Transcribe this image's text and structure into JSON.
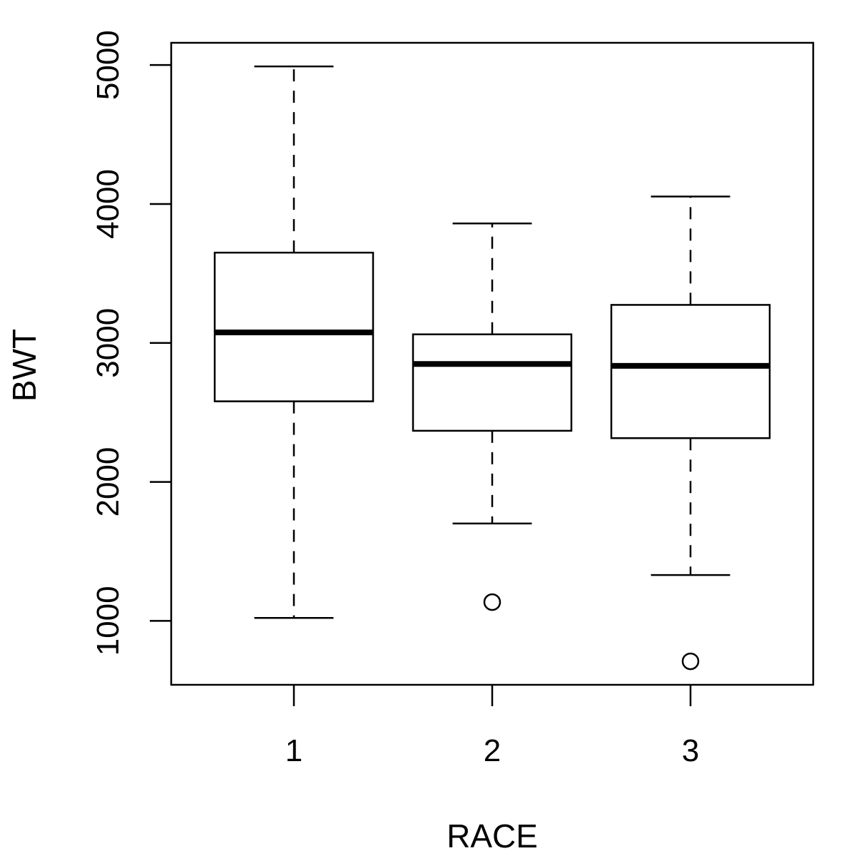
{
  "chart_data": {
    "type": "boxplot",
    "title": "",
    "xlabel": "RACE",
    "ylabel": "BWT",
    "categories": [
      "1",
      "2",
      "3"
    ],
    "boxes": [
      {
        "category": "1",
        "whisker_low": 1021,
        "q1": 2580,
        "median": 3076,
        "q3": 3650,
        "whisker_high": 4990,
        "outliers": []
      },
      {
        "category": "2",
        "whisker_low": 1701,
        "q1": 2368,
        "median": 2849,
        "q3": 3062,
        "whisker_high": 3860,
        "outliers": [
          1135
        ]
      },
      {
        "category": "3",
        "whisker_low": 1330,
        "q1": 2315,
        "median": 2835,
        "q3": 3274,
        "whisker_high": 4054,
        "outliers": [
          709
        ]
      }
    ],
    "yticks": [
      1000,
      2000,
      3000,
      4000,
      5000
    ],
    "ylim": [
      540,
      5160
    ],
    "grid": false,
    "legend": "none"
  }
}
